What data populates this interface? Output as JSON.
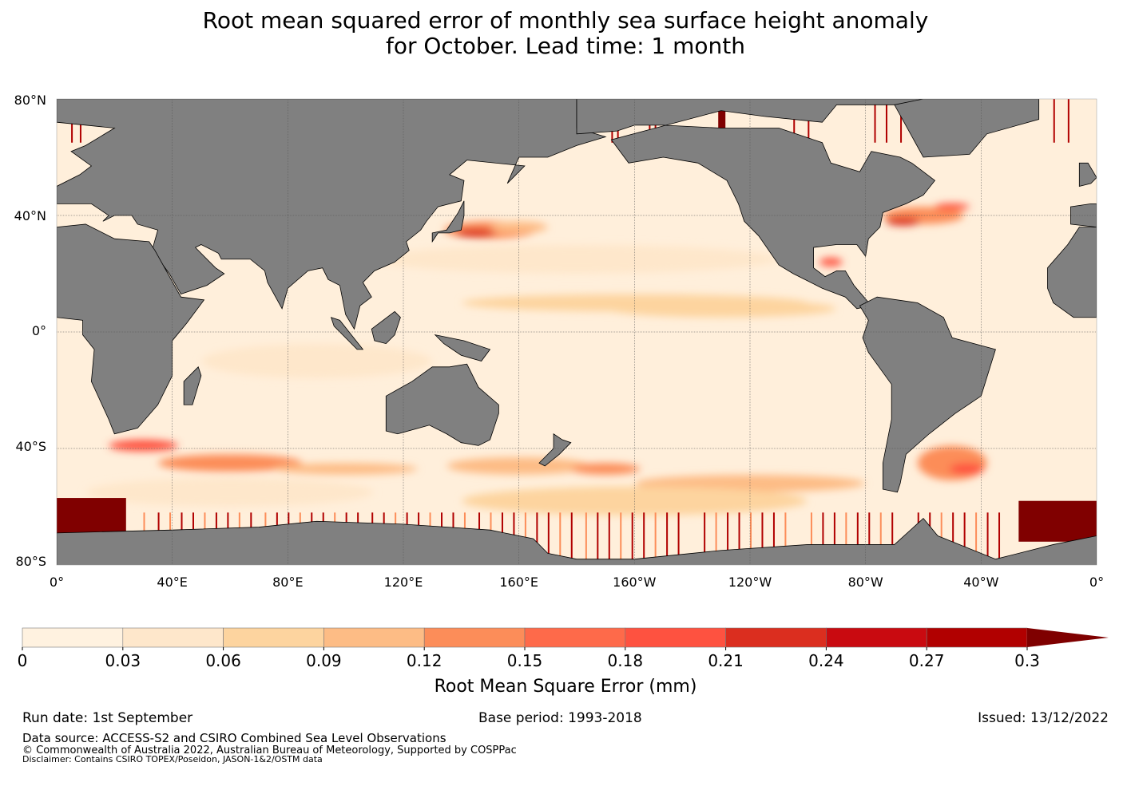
{
  "title": {
    "line1": "Root mean squared error of monthly sea surface height anomaly",
    "line2": "for October. Lead time: 1 month"
  },
  "map": {
    "lat_labels": [
      "80°N",
      "40°N",
      "0°",
      "40°S",
      "80°S"
    ],
    "lon_labels": [
      "0°",
      "40°E",
      "80°E",
      "120°E",
      "160°E",
      "160°W",
      "120°W",
      "80°W",
      "40°W",
      "0°"
    ],
    "land_color": "#808080",
    "ocean_base": "#ffefdb"
  },
  "colorbar": {
    "ticks": [
      "0",
      "0.03",
      "0.06",
      "0.09",
      "0.12",
      "0.15",
      "0.18",
      "0.21",
      "0.24",
      "0.27",
      "0.3"
    ],
    "colors": [
      "#fff2e0",
      "#fee7cb",
      "#fdd49f",
      "#fdbc85",
      "#fc8d59",
      "#fe6a4a",
      "#fe5240",
      "#db2e1f",
      "#c90a10",
      "#b10000"
    ],
    "extend_color": "#7f0000",
    "label": "Root Mean Square Error (mm)"
  },
  "footer": {
    "run_date": "Run date: 1st September",
    "base_period": "Base period: 1993-2018",
    "issued": "Issued: 13/12/2022",
    "data_source": "Data source: ACCESS-S2 and CSIRO Combined Sea Level Observations",
    "copyright": "© Commonwealth of Australia 2022, Australian Bureau of Meteorology, Supported by COSPPac",
    "disclaimer": "Disclaimer: Contains CSIRO TOPEX/Poseidon, JASON-1&2/OSTM data"
  }
}
